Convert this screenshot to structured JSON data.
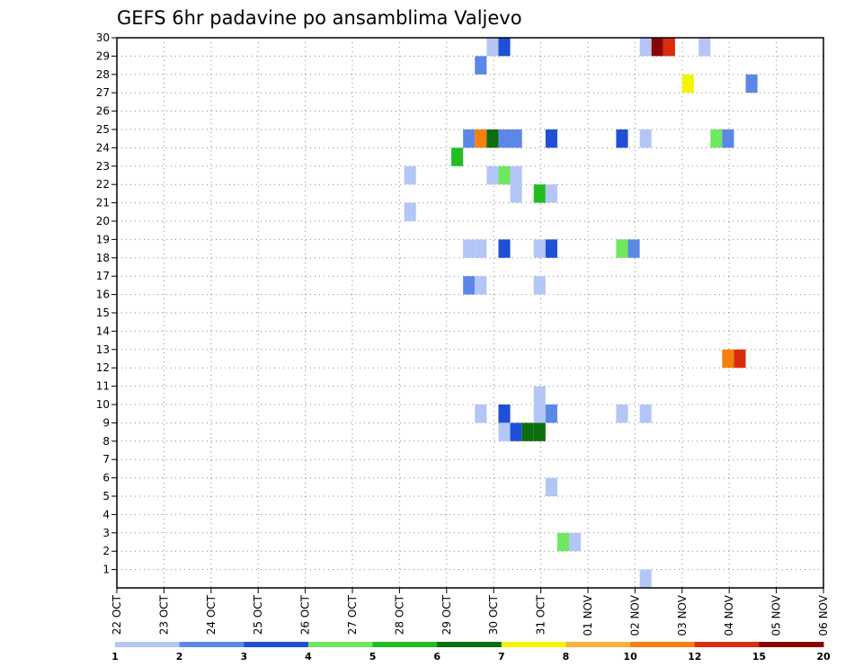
{
  "chart_data": {
    "type": "heatmap",
    "title": "GEFS 6hr padavine po ansamblima Valjevo",
    "x_ticks": [
      "22 OCT",
      "23 OCT",
      "24 OCT",
      "25 OCT",
      "26 OCT",
      "27 OCT",
      "28 OCT",
      "29 OCT",
      "30 OCT",
      "31 OCT",
      "01 NOV",
      "02 NOV",
      "03 NOV",
      "04 NOV",
      "05 NOV",
      "06 NOV"
    ],
    "y_ticks": [
      "1",
      "2",
      "3",
      "4",
      "5",
      "6",
      "7",
      "8",
      "9",
      "10",
      "11",
      "12",
      "13",
      "14",
      "15",
      "16",
      "17",
      "18",
      "19",
      "20",
      "21",
      "22",
      "23",
      "24",
      "25",
      "26",
      "27",
      "28",
      "29",
      "30"
    ],
    "xlim_days": [
      0,
      15
    ],
    "ylim": [
      0,
      30
    ],
    "grid": true,
    "colorbar": {
      "labels": [
        "1",
        "2",
        "3",
        "4",
        "5",
        "6",
        "7",
        "8",
        "10",
        "12",
        "15",
        "20"
      ],
      "colors": [
        "#b4c6f5",
        "#5c87e6",
        "#1f4fd6",
        "#6ee85f",
        "#21bd21",
        "#0c6e0c",
        "#f5f500",
        "#f7b13a",
        "#f57f0f",
        "#db2d0d",
        "#8a0404"
      ]
    },
    "cell_width_days": 0.25,
    "cells": [
      {
        "day": 7.85,
        "member": 29,
        "value": 1.5
      },
      {
        "day": 8.1,
        "member": 29,
        "value": 3.5
      },
      {
        "day": 7.6,
        "member": 28,
        "value": 2.5
      },
      {
        "day": 11.1,
        "member": 29,
        "value": 1.5
      },
      {
        "day": 11.35,
        "member": 29,
        "value": 18
      },
      {
        "day": 11.6,
        "member": 29,
        "value": 12
      },
      {
        "day": 12.35,
        "member": 29,
        "value": 1.5
      },
      {
        "day": 12.0,
        "member": 27,
        "value": 7.5
      },
      {
        "day": 13.35,
        "member": 27,
        "value": 2.5
      },
      {
        "day": 7.35,
        "member": 24,
        "value": 2.5
      },
      {
        "day": 7.6,
        "member": 24,
        "value": 11
      },
      {
        "day": 7.85,
        "member": 24,
        "value": 6.5
      },
      {
        "day": 8.1,
        "member": 24,
        "value": 2.5
      },
      {
        "day": 8.35,
        "member": 24,
        "value": 2.5
      },
      {
        "day": 9.1,
        "member": 24,
        "value": 3.5
      },
      {
        "day": 10.6,
        "member": 24,
        "value": 3.5
      },
      {
        "day": 11.1,
        "member": 24,
        "value": 1.5
      },
      {
        "day": 12.6,
        "member": 24,
        "value": 4.5
      },
      {
        "day": 12.85,
        "member": 24,
        "value": 2.5
      },
      {
        "day": 7.1,
        "member": 23,
        "value": 5.5
      },
      {
        "day": 6.1,
        "member": 22,
        "value": 1.5
      },
      {
        "day": 7.85,
        "member": 22,
        "value": 1.5
      },
      {
        "day": 8.1,
        "member": 22,
        "value": 4.5
      },
      {
        "day": 8.35,
        "member": 22,
        "value": 1.5
      },
      {
        "day": 8.35,
        "member": 21,
        "value": 1.5
      },
      {
        "day": 8.85,
        "member": 21,
        "value": 5.5
      },
      {
        "day": 9.1,
        "member": 21,
        "value": 1.5
      },
      {
        "day": 6.1,
        "member": 20,
        "value": 1.5
      },
      {
        "day": 7.35,
        "member": 18,
        "value": 1.5
      },
      {
        "day": 7.6,
        "member": 18,
        "value": 1.5
      },
      {
        "day": 8.1,
        "member": 18,
        "value": 3.5
      },
      {
        "day": 8.85,
        "member": 18,
        "value": 1.5
      },
      {
        "day": 9.1,
        "member": 18,
        "value": 3.5
      },
      {
        "day": 10.6,
        "member": 18,
        "value": 4.5
      },
      {
        "day": 10.85,
        "member": 18,
        "value": 2.5
      },
      {
        "day": 7.35,
        "member": 16,
        "value": 2.5
      },
      {
        "day": 7.6,
        "member": 16,
        "value": 1.5
      },
      {
        "day": 8.85,
        "member": 16,
        "value": 1.5
      },
      {
        "day": 12.85,
        "member": 12,
        "value": 11
      },
      {
        "day": 13.1,
        "member": 12,
        "value": 12
      },
      {
        "day": 8.85,
        "member": 10,
        "value": 1.5
      },
      {
        "day": 7.6,
        "member": 9,
        "value": 1.5
      },
      {
        "day": 8.1,
        "member": 9,
        "value": 3.5
      },
      {
        "day": 8.85,
        "member": 9,
        "value": 1.5
      },
      {
        "day": 9.1,
        "member": 9,
        "value": 2.5
      },
      {
        "day": 10.6,
        "member": 9,
        "value": 1.5
      },
      {
        "day": 11.1,
        "member": 9,
        "value": 1.5
      },
      {
        "day": 8.1,
        "member": 8,
        "value": 1.5
      },
      {
        "day": 8.35,
        "member": 8,
        "value": 3.5
      },
      {
        "day": 8.6,
        "member": 8,
        "value": 6.5
      },
      {
        "day": 8.85,
        "member": 8,
        "value": 6.5
      },
      {
        "day": 9.1,
        "member": 5,
        "value": 1.5
      },
      {
        "day": 9.35,
        "member": 2,
        "value": 4.5
      },
      {
        "day": 9.6,
        "member": 2,
        "value": 1.5
      },
      {
        "day": 11.1,
        "member": 0,
        "value": 1.5
      }
    ]
  }
}
